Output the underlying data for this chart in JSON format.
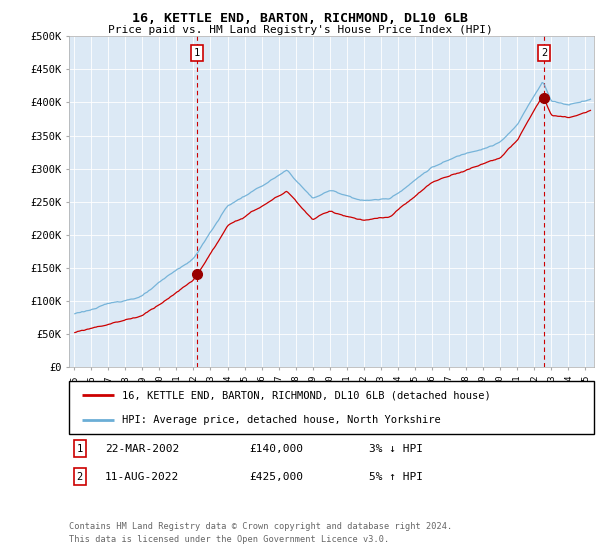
{
  "title": "16, KETTLE END, BARTON, RICHMOND, DL10 6LB",
  "subtitle": "Price paid vs. HM Land Registry's House Price Index (HPI)",
  "ylim": [
    0,
    500000
  ],
  "yticks": [
    0,
    50000,
    100000,
    150000,
    200000,
    250000,
    300000,
    350000,
    400000,
    450000,
    500000
  ],
  "ytick_labels": [
    "£0",
    "£50K",
    "£100K",
    "£150K",
    "£200K",
    "£250K",
    "£300K",
    "£350K",
    "£400K",
    "£450K",
    "£500K"
  ],
  "sale1_x": 2002.21,
  "sale1_price": 140000,
  "sale2_x": 2022.58,
  "sale2_price": 425000,
  "hpi_color": "#6baed6",
  "price_color": "#cc0000",
  "vline_color": "#cc0000",
  "dot_color": "#990000",
  "bg_color": "#ffffff",
  "plot_bg_color": "#dce9f5",
  "grid_color": "#ffffff",
  "legend_label_price": "16, KETTLE END, BARTON, RICHMOND, DL10 6LB (detached house)",
  "legend_label_hpi": "HPI: Average price, detached house, North Yorkshire",
  "footer1": "Contains HM Land Registry data © Crown copyright and database right 2024.",
  "footer2": "This data is licensed under the Open Government Licence v3.0.",
  "table_row1": [
    "1",
    "22-MAR-2002",
    "£140,000",
    "3% ↓ HPI"
  ],
  "table_row2": [
    "2",
    "11-AUG-2022",
    "£425,000",
    "5% ↑ HPI"
  ],
  "xlim_left": 1994.7,
  "xlim_right": 2025.5
}
